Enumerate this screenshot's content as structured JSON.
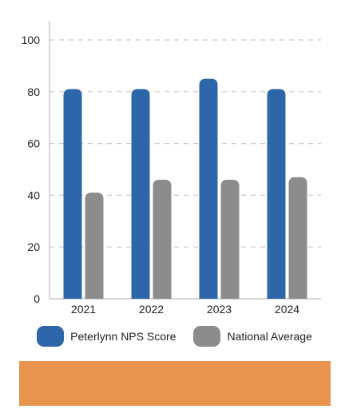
{
  "chart_data": {
    "type": "bar",
    "categories": [
      "2021",
      "2022",
      "2023",
      "2024"
    ],
    "series": [
      {
        "name": "Peterlynn NPS Score",
        "values": [
          81,
          81,
          85,
          81
        ],
        "color": "#2e67a9"
      },
      {
        "name": "National Average",
        "values": [
          41,
          46,
          46,
          47
        ],
        "color": "#8c8c8c"
      }
    ],
    "ylim": [
      0,
      100
    ],
    "yticks": [
      0,
      20,
      40,
      60,
      80,
      100
    ],
    "grid": true,
    "legend_position": "bottom",
    "title": "",
    "xlabel": "",
    "ylabel": ""
  },
  "footer_color": "#e9944e"
}
